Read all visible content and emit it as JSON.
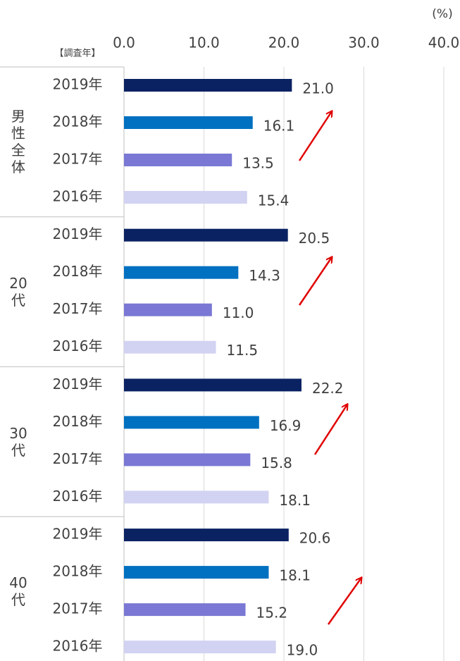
{
  "chart_data": {
    "type": "bar",
    "orientation": "horizontal",
    "unit_label": "(%)",
    "category_axis_label": "【調査年】",
    "categories": [
      "男性全体",
      "20代",
      "30代",
      "40代"
    ],
    "series": [
      {
        "name": "2019年",
        "color": "#0b2262",
        "values": [
          21.0,
          20.5,
          22.2,
          20.6
        ],
        "value_labels": [
          "21.0",
          "20.5",
          "22.2",
          "20.6"
        ]
      },
      {
        "name": "2018年",
        "color": "#0070c0",
        "values": [
          16.1,
          14.3,
          16.9,
          18.1
        ],
        "value_labels": [
          "16.1",
          "14.3",
          "16.9",
          "18.1"
        ]
      },
      {
        "name": "2017年",
        "color": "#7a78d4",
        "values": [
          13.5,
          11.0,
          15.8,
          15.2
        ],
        "value_labels": [
          "13.5",
          "11.0",
          "15.8",
          "15.2"
        ]
      },
      {
        "name": "2016年",
        "color": "#d2d2f2",
        "values": [
          15.4,
          11.5,
          18.1,
          19.0
        ],
        "value_labels": [
          "15.4",
          "11.5",
          "18.1",
          "19.0"
        ]
      }
    ],
    "xlim": [
      0,
      40
    ],
    "xticks": [
      {
        "value": 0,
        "label": "0.0"
      },
      {
        "value": 10,
        "label": "10.0"
      },
      {
        "value": 20,
        "label": "20.0"
      },
      {
        "value": 30,
        "label": "30.0"
      },
      {
        "value": 40,
        "label": "40.0"
      }
    ],
    "grid": true
  }
}
